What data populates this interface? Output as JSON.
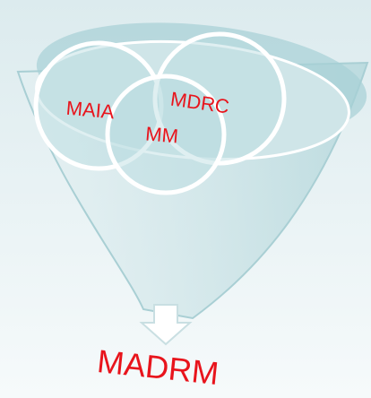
{
  "nodes": [
    {
      "label": "MAIA"
    },
    {
      "label": "MM"
    },
    {
      "label": "MDRC"
    }
  ],
  "output": {
    "label": "MADRM"
  }
}
